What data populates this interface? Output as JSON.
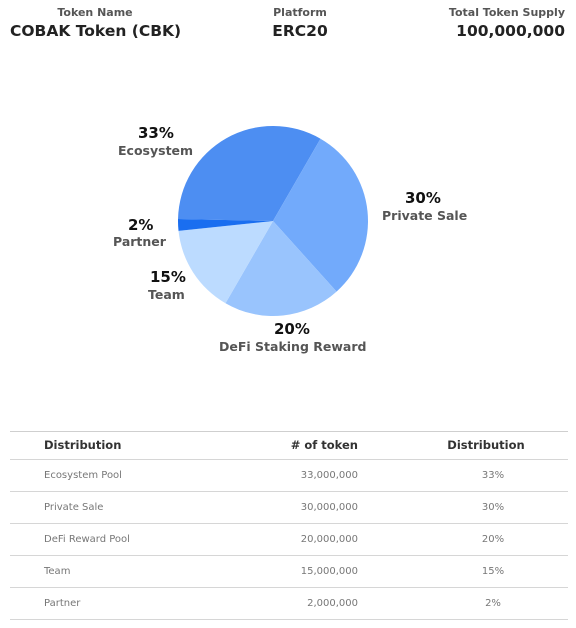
{
  "info": {
    "token_name_label": "Token Name",
    "token_name_value": "COBAK Token (CBK)",
    "platform_label": "Platform",
    "platform_value": "ERC20",
    "supply_label": "Total Token Supply",
    "supply_value": "100,000,000"
  },
  "chart_data": {
    "type": "pie",
    "slices": [
      {
        "name": "Ecosystem",
        "percent_label": "33%",
        "value": 33,
        "color": "#4d8ef2"
      },
      {
        "name": "Private Sale",
        "percent_label": "30%",
        "value": 30,
        "color": "#72aafb"
      },
      {
        "name": "DeFi Staking Reward",
        "percent_label": "20%",
        "value": 20,
        "color": "#99c4fd"
      },
      {
        "name": "Team",
        "percent_label": "15%",
        "value": 15,
        "color": "#bcdbff"
      },
      {
        "name": "Partner",
        "percent_label": "2%",
        "value": 2,
        "color": "#1a6ef0"
      }
    ]
  },
  "table": {
    "headers": [
      "Distribution",
      "# of token",
      "Distribution"
    ],
    "rows": [
      {
        "name": "Ecosystem Pool",
        "tokens": "33,000,000",
        "share": "33%"
      },
      {
        "name": "Private Sale",
        "tokens": "30,000,000",
        "share": "30%"
      },
      {
        "name": "DeFi Reward Pool",
        "tokens": "20,000,000",
        "share": "20%"
      },
      {
        "name": "Team",
        "tokens": "15,000,000",
        "share": "15%"
      },
      {
        "name": "Partner",
        "tokens": "2,000,000",
        "share": "2%"
      }
    ]
  }
}
